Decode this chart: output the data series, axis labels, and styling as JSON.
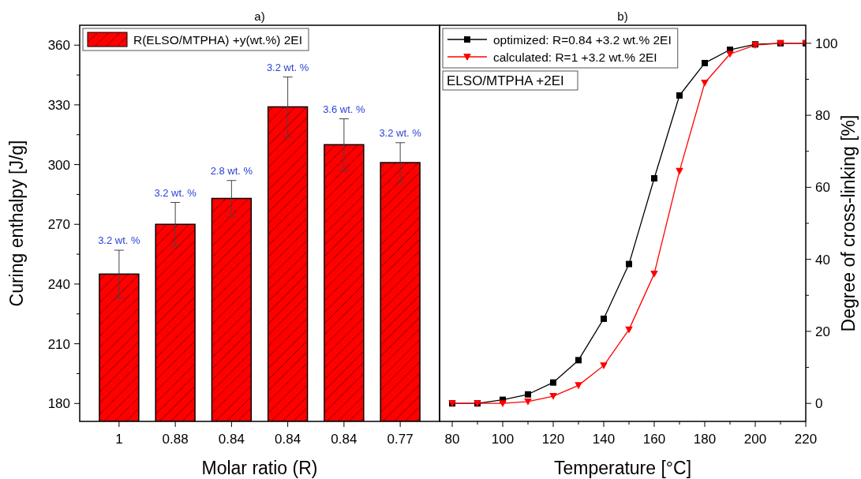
{
  "chart_data": [
    {
      "type": "bar",
      "title": "a)",
      "xlabel": "Molar ratio (R)",
      "ylabel": "Curing enthalpy [J/g]",
      "categories": [
        "1",
        "0.88",
        "0.84",
        "0.84",
        "0.84",
        "0.77"
      ],
      "series": [
        {
          "name": "R(ELSO/MTPHA) +y(wt.%) 2EI",
          "color": "#ff0000",
          "values": [
            245,
            270,
            283,
            329,
            310,
            301
          ],
          "errors": [
            12,
            11,
            9,
            15,
            13,
            10
          ]
        }
      ],
      "annotations": [
        "3.2 wt. %",
        "3.2 wt. %",
        "2.8 wt. %",
        "3.2 wt. %",
        "3.6 wt. %",
        "3.2 wt. %"
      ],
      "ylim": [
        171,
        370
      ],
      "yticks": [
        180,
        {
          "value": 195,
          "label": null
        },
        210,
        {
          "value": 225,
          "label": null
        },
        240,
        {
          "value": 255,
          "label": null
        },
        270,
        {
          "value": 285,
          "label": null
        },
        300,
        {
          "value": 315,
          "label": null
        },
        330,
        {
          "value": 345,
          "label": null
        },
        360
      ],
      "legend": "top left",
      "grid": false
    },
    {
      "type": "line",
      "title": "b)",
      "xlabel": "Temperature [°C]",
      "y2label": "Degree of cross-linking [%]",
      "annotations": [
        "ELSO/MTPHA +2EI"
      ],
      "x": [
        80,
        90,
        100,
        110,
        120,
        130,
        140,
        150,
        160,
        170,
        180,
        190,
        200,
        210,
        220
      ],
      "series": [
        {
          "name": "optimized: R=0.84 +3.2 wt.% 2EI",
          "color": "#000000",
          "marker": "square",
          "axis": "y2",
          "values": [
            0,
            0,
            1,
            2.5,
            5.8,
            12,
            23.5,
            38.7,
            62.5,
            85.5,
            94.5,
            98.2,
            99.7,
            100,
            100
          ]
        },
        {
          "name": "calculated: R=1 +3.2 wt.% 2EI",
          "color": "#ff0000",
          "marker": "triangle",
          "axis": "y2",
          "values": [
            0,
            0,
            0,
            0.5,
            2,
            5,
            10.5,
            20.5,
            36,
            64.5,
            89,
            97,
            99.5,
            100,
            100
          ]
        }
      ],
      "xlim": [
        75,
        220
      ],
      "xticks": [
        80,
        {
          "value": 90,
          "label": null
        },
        100,
        {
          "value": 110,
          "label": null
        },
        120,
        {
          "value": 130,
          "label": null
        },
        140,
        {
          "value": 150,
          "label": null
        },
        160,
        {
          "value": 170,
          "label": null
        },
        180,
        {
          "value": 190,
          "label": null
        },
        200,
        {
          "value": 210,
          "label": null
        },
        220
      ],
      "y2lim": [
        -5,
        105
      ],
      "y2ticks": [
        0,
        {
          "value": 10,
          "label": null
        },
        20,
        {
          "value": 30,
          "label": null
        },
        40,
        {
          "value": 50,
          "label": null
        },
        60,
        {
          "value": 70,
          "label": null
        },
        80,
        {
          "value": 90,
          "label": null
        },
        100
      ],
      "legend": "top left",
      "grid": false
    }
  ]
}
